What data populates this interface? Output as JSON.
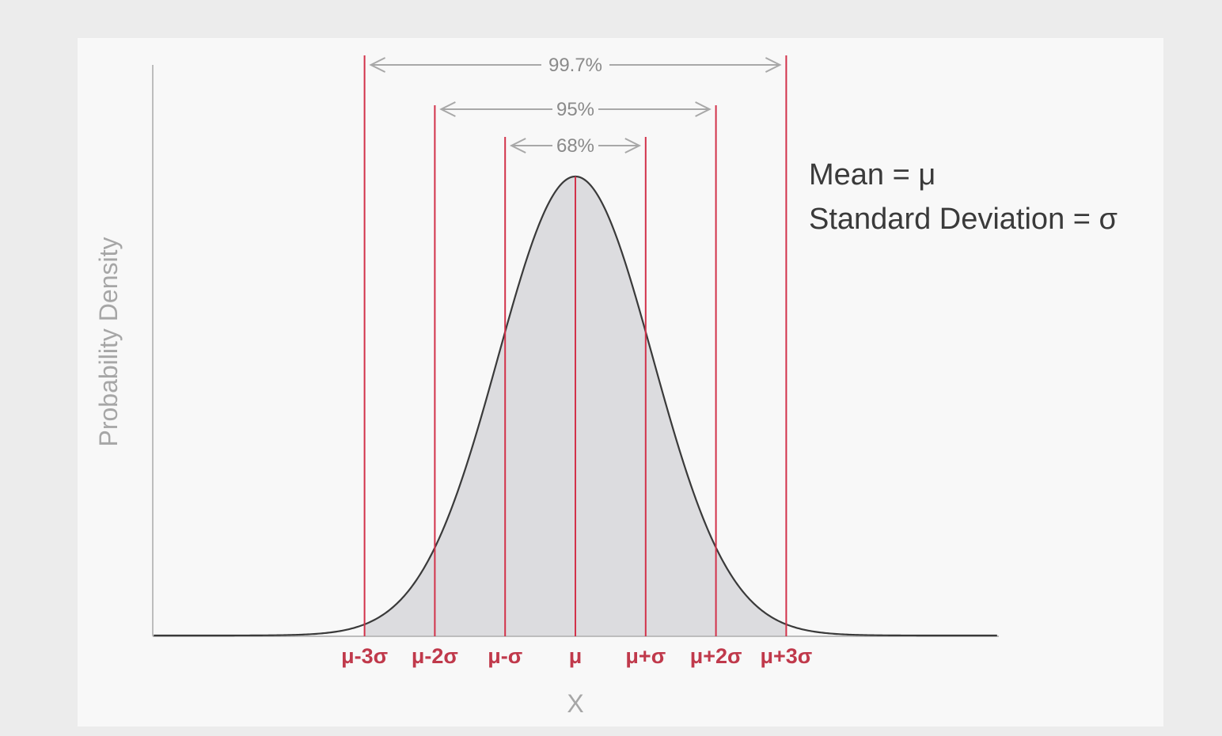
{
  "chart_data": {
    "type": "area",
    "distribution": "normal",
    "mean_symbol": "μ",
    "sigma_symbol": "σ",
    "xlabel": "X",
    "ylabel": "Probability Density",
    "x_range_sigma": [
      -6,
      6
    ],
    "markers": [
      {
        "sigma": -3,
        "label": "μ-3σ"
      },
      {
        "sigma": -2,
        "label": "μ-2σ"
      },
      {
        "sigma": -1,
        "label": "μ-σ"
      },
      {
        "sigma": 0,
        "label": "μ"
      },
      {
        "sigma": 1,
        "label": "μ+σ"
      },
      {
        "sigma": 2,
        "label": "μ+2σ"
      },
      {
        "sigma": 3,
        "label": "μ+3σ"
      }
    ],
    "shaded_region_sigma": [
      -3,
      3
    ],
    "intervals": [
      {
        "from_sigma": -3,
        "to_sigma": 3,
        "label": "99.7%"
      },
      {
        "from_sigma": -2,
        "to_sigma": 2,
        "label": "95%"
      },
      {
        "from_sigma": -1,
        "to_sigma": 1,
        "label": "68%"
      }
    ],
    "legend": {
      "line1": "Mean = μ",
      "line2": "Standard Deviation = σ"
    },
    "colors": {
      "curve": "#3a3a3a",
      "fill": "#dcdcdf",
      "marker_line": "#d2324a",
      "marker_label": "#c0394b",
      "interval_arrow": "#a8a8a8",
      "axis": "#bdbdbd"
    }
  }
}
